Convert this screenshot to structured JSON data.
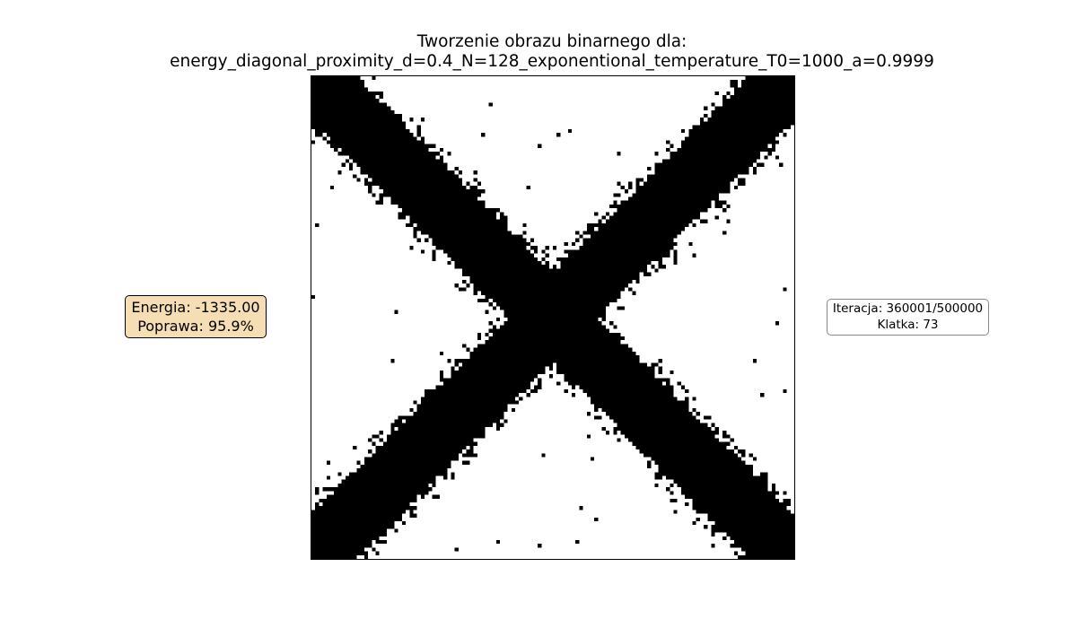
{
  "title": {
    "line1": "Tworzenie obrazu binarnego dla:",
    "line2": "energy_diagonal_proximity_d=0.4_N=128_exponentional_temperature_T0=1000_a=0.9999"
  },
  "energy_box": {
    "energy": "Energia: -1335.00",
    "improvement": "Poprawa: 95.9%",
    "background": "#f5deb3"
  },
  "iteration_box": {
    "iteration": "Iteracja: 360001/500000",
    "frame": "Klatka: 73"
  },
  "chart_data": {
    "type": "heatmap",
    "grid_size": 128,
    "colors": {
      "on": "#000000",
      "off": "#ffffff"
    },
    "pattern": "two diagonal bands forming an X, main diagonal and anti-diagonal, with scattered noise pixels near the band edges",
    "band_half_width_cells": 11.5,
    "noise_zone_cells": 7,
    "noise_max_density": 0.6,
    "stray_pixel_density": 0.004,
    "seed": 73
  }
}
